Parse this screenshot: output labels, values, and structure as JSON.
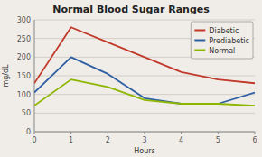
{
  "chart_data": {
    "type": "line",
    "title": "Normal Blood Sugar Ranges",
    "xlabel": "Hours",
    "ylabel": "mg/dL",
    "x": [
      0,
      1,
      2,
      3,
      4,
      5,
      6
    ],
    "series": [
      {
        "name": "Diabetic",
        "color": "#c0392b",
        "values": [
          130,
          280,
          240,
          200,
          160,
          140,
          130
        ]
      },
      {
        "name": "Prediabetic",
        "color": "#2e5fa3",
        "values": [
          105,
          200,
          155,
          90,
          75,
          75,
          105
        ]
      },
      {
        "name": "Normal",
        "color": "#8db600",
        "values": [
          70,
          140,
          120,
          85,
          75,
          75,
          70
        ]
      }
    ],
    "xlim": [
      0,
      6
    ],
    "xticks": [
      0,
      1,
      2,
      3,
      4,
      5,
      6
    ],
    "ylim": [
      0,
      300
    ],
    "yticks": [
      0,
      50,
      100,
      150,
      200,
      250,
      300
    ],
    "grid": true,
    "legend": "upper right"
  }
}
